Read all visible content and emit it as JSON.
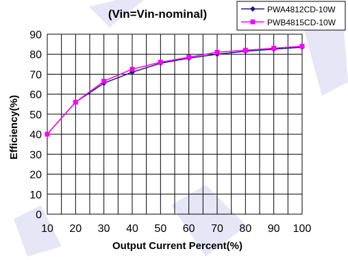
{
  "chart_data": {
    "type": "line",
    "title": "(Vin=Vin-nominal)",
    "xlabel": "Output Current Percent(%)",
    "ylabel": "Efficiency(%)",
    "x": [
      10,
      20,
      30,
      40,
      50,
      60,
      70,
      80,
      90,
      100
    ],
    "xlim": [
      10,
      100
    ],
    "ylim": [
      0,
      90
    ],
    "yticks": [
      0,
      10,
      20,
      30,
      40,
      50,
      60,
      70,
      80,
      90
    ],
    "grid": true,
    "legend_position": "top-right",
    "series": [
      {
        "name": "PWA4812CD-10W",
        "color": "#1a1a6e",
        "marker": "diamond",
        "values": [
          40,
          56,
          65.5,
          71,
          75.5,
          78,
          80,
          81.5,
          82.5,
          83.5
        ]
      },
      {
        "name": "PWB4815CD-10W",
        "color": "#ff00ff",
        "marker": "square",
        "values": [
          40,
          56,
          66.5,
          72.5,
          76,
          78.5,
          81,
          82,
          83,
          84
        ]
      }
    ]
  }
}
